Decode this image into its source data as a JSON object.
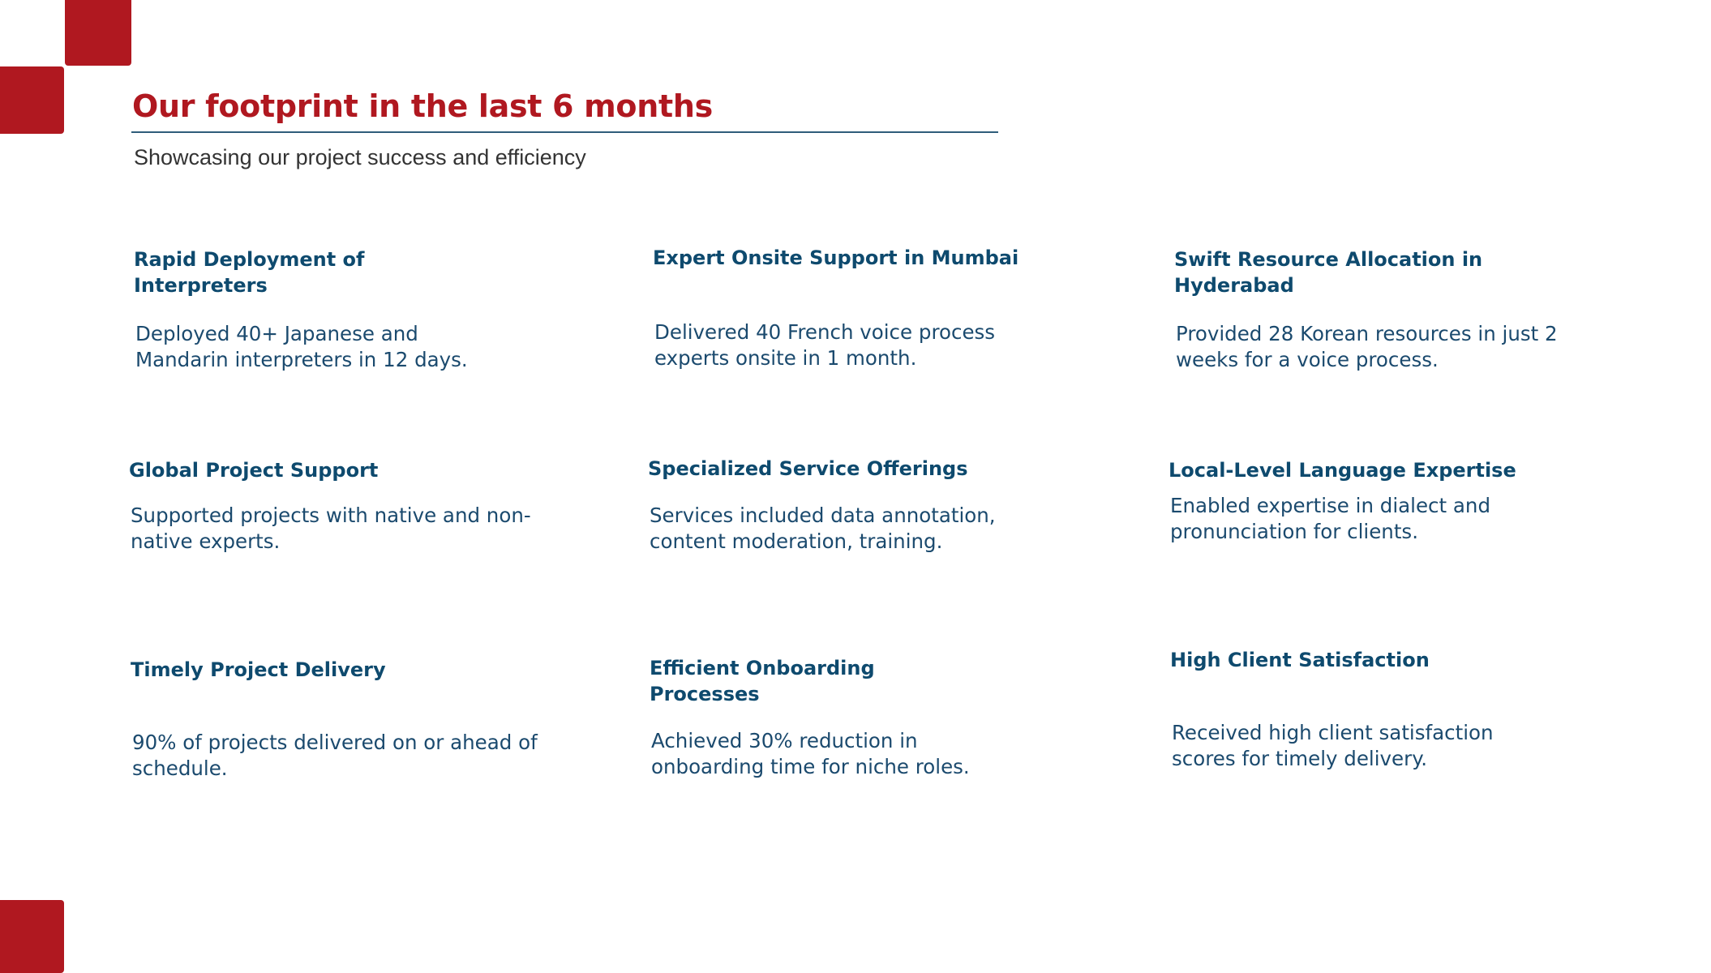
{
  "colors": {
    "accent_red": "#B01820",
    "heading_navy": "#0E4A6E",
    "body_navy": "#1B4A6E",
    "rule": "#2F5D7A"
  },
  "header": {
    "title": "Our footprint in the last 6 months",
    "subtitle": "Showcasing our project success and efficiency"
  },
  "cards": [
    {
      "title": "Rapid Deployment of Interpreters",
      "text": "Deployed 40+ Japanese and Mandarin interpreters in 12 days."
    },
    {
      "title": "Expert Onsite Support in Mumbai",
      "text": "Delivered 40 French voice process experts onsite in 1 month."
    },
    {
      "title": "Swift Resource Allocation in Hyderabad",
      "text": "Provided 28 Korean resources in just 2 weeks for a voice process."
    },
    {
      "title": "Global Project Support",
      "text": "Supported projects with native and non-native experts."
    },
    {
      "title": "Specialized Service Offerings",
      "text": "Services included data annotation, content moderation, training."
    },
    {
      "title": "Local-Level Language Expertise",
      "text": "Enabled expertise in dialect and pronunciation for clients."
    },
    {
      "title": "Timely Project Delivery",
      "text": "90% of projects delivered on or ahead of schedule."
    },
    {
      "title": "Efficient Onboarding Processes",
      "text": "Achieved 30% reduction in onboarding time for niche roles."
    },
    {
      "title": "High Client Satisfaction",
      "text": "Received high client satisfaction scores for timely delivery."
    }
  ]
}
